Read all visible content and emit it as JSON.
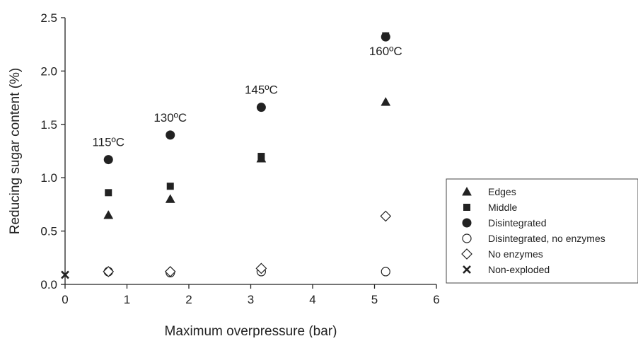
{
  "chart_data": {
    "type": "scatter",
    "title": "",
    "xlabel": "Maximum overpressure (bar)",
    "ylabel": "Reducing sugar content (%)",
    "xlim": [
      0,
      6
    ],
    "ylim": [
      0,
      2.5
    ],
    "x_ticks": [
      0,
      1,
      2,
      3,
      4,
      5,
      6
    ],
    "y_ticks": [
      0.0,
      0.5,
      1.0,
      1.5,
      2.0,
      2.5
    ],
    "x_tick_labels": [
      "0",
      "1",
      "2",
      "3",
      "4",
      "5",
      "6"
    ],
    "y_tick_labels": [
      "0.0",
      "0.5",
      "1.0",
      "1.5",
      "2.0",
      "2.5"
    ],
    "grid": false,
    "legend_position": "right, outside plot",
    "series": [
      {
        "name": "Edges",
        "marker": "triangle",
        "points": [
          [
            0.7,
            0.65
          ],
          [
            1.7,
            0.8
          ],
          [
            3.17,
            1.18
          ],
          [
            5.18,
            1.71
          ]
        ]
      },
      {
        "name": "Middle",
        "marker": "square",
        "points": [
          [
            0.7,
            0.86
          ],
          [
            1.7,
            0.92
          ],
          [
            3.17,
            1.2
          ],
          [
            5.18,
            2.33
          ]
        ]
      },
      {
        "name": "Disintegrated",
        "marker": "filled-circle",
        "points": [
          [
            0.7,
            1.17
          ],
          [
            1.7,
            1.4
          ],
          [
            3.17,
            1.66
          ],
          [
            5.18,
            2.32
          ]
        ]
      },
      {
        "name": "Disintegrated, no enzymes",
        "marker": "open-circle",
        "points": [
          [
            0.7,
            0.12
          ],
          [
            1.7,
            0.11
          ],
          [
            3.17,
            0.12
          ],
          [
            5.18,
            0.12
          ]
        ]
      },
      {
        "name": "No enzymes",
        "marker": "open-diamond",
        "points": [
          [
            0.7,
            0.12
          ],
          [
            1.7,
            0.12
          ],
          [
            3.17,
            0.15
          ],
          [
            5.18,
            0.64
          ]
        ]
      },
      {
        "name": "Non-exploded",
        "marker": "cross",
        "points": [
          [
            0.0,
            0.09
          ]
        ]
      }
    ],
    "annotations": [
      {
        "text": "115ºC",
        "x": 0.7,
        "y": 1.17
      },
      {
        "text": "130ºC",
        "x": 1.7,
        "y": 1.4
      },
      {
        "text": "145ºC",
        "x": 3.17,
        "y": 1.66
      },
      {
        "text": "160ºC",
        "x": 5.18,
        "y": 2.32
      }
    ]
  }
}
